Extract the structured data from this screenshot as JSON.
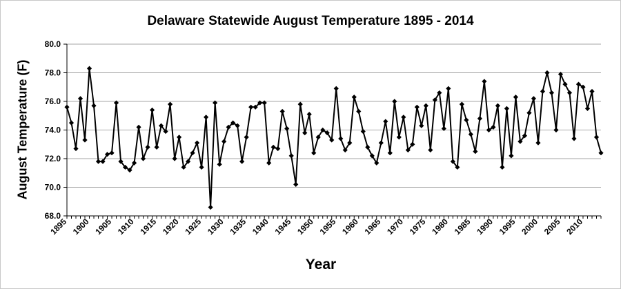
{
  "chart_data": {
    "type": "line",
    "title": "Delaware Statewide August Temperature 1895 - 2014",
    "xlabel": "Year",
    "ylabel": "August Temperature (F)",
    "ylim": [
      68.0,
      80.0
    ],
    "yticks": [
      "68.0",
      "70.0",
      "72.0",
      "74.0",
      "76.0",
      "78.0",
      "80.0"
    ],
    "xticks": [
      "1895",
      "1900",
      "1905",
      "1910",
      "1915",
      "1920",
      "1925",
      "1930",
      "1935",
      "1940",
      "1945",
      "1950",
      "1955",
      "1960",
      "1965",
      "1970",
      "1975",
      "1980",
      "1985",
      "1990",
      "1995",
      "2000",
      "2005",
      "2010"
    ],
    "grid": "horizontal",
    "legend": "none",
    "x_start": 1895,
    "series": [
      {
        "name": "August Temperature",
        "color": "#000000",
        "marker": "diamond",
        "values": [
          75.6,
          74.5,
          72.7,
          76.2,
          73.3,
          78.3,
          75.7,
          71.8,
          71.8,
          72.3,
          72.4,
          75.9,
          71.8,
          71.4,
          71.2,
          71.7,
          74.2,
          72.0,
          72.8,
          75.4,
          72.8,
          74.3,
          73.9,
          75.8,
          72.0,
          73.5,
          71.4,
          71.8,
          72.4,
          73.1,
          71.4,
          74.9,
          68.6,
          75.9,
          71.6,
          73.2,
          74.2,
          74.5,
          74.3,
          71.8,
          73.5,
          75.6,
          75.6,
          75.9,
          75.9,
          71.7,
          72.8,
          72.7,
          75.3,
          74.1,
          72.2,
          70.2,
          75.8,
          73.8,
          75.1,
          72.4,
          73.5,
          74.0,
          73.8,
          73.3,
          76.9,
          73.4,
          72.6,
          73.1,
          76.3,
          75.3,
          73.9,
          72.8,
          72.2,
          71.7,
          73.1,
          74.6,
          72.4,
          76.0,
          73.5,
          74.9,
          72.6,
          73.0,
          75.6,
          74.3,
          75.7,
          72.6,
          76.1,
          76.6,
          74.1,
          76.9,
          71.8,
          71.4,
          75.8,
          74.7,
          73.7,
          72.5,
          74.8,
          77.4,
          74.0,
          74.2,
          75.7,
          71.4,
          75.5,
          72.2,
          76.3,
          73.2,
          73.6,
          75.2,
          76.2,
          73.1,
          76.7,
          78.0,
          76.6,
          74.0,
          77.9,
          77.2,
          76.6,
          73.4,
          77.2,
          77.0,
          75.5,
          76.7,
          73.5,
          72.4
        ]
      }
    ]
  }
}
